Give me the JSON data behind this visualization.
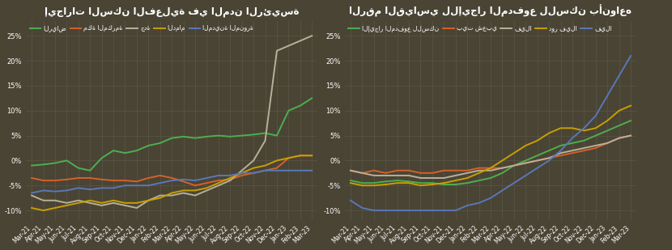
{
  "background_color": "#4a4435",
  "plot_bg_color": "#4a4435",
  "grid_color": "#5e5a48",
  "text_color": "#ffffff",
  "title1": "إيجارات السكن الفعلية في المدن الرئيسة",
  "title2": "الرقم القياسي للإيجار المدفوع للسكن بأنواعه",
  "x_labels": [
    "Mar-21",
    "Apr-21",
    "May-21",
    "Jun-21",
    "Jul-21",
    "Aug-21",
    "Sep-21",
    "Oct-21",
    "Nov-21",
    "Dec-21",
    "Jan-22",
    "Feb-22",
    "Mar-22",
    "Apr-22",
    "May-22",
    "Jun-22",
    "Jul-22",
    "Aug-22",
    "Sep-22",
    "Oct-22",
    "Nov-22",
    "Dec-22",
    "Jan-23",
    "Feb-23",
    "Mar-23"
  ],
  "chart1_legend": [
    "الرياض",
    "مكة المكرمة",
    "جدة",
    "الدمام",
    "المدينة المنورة"
  ],
  "chart1_colors": [
    "#4caf50",
    "#d4622a",
    "#b8b09a",
    "#c8a000",
    "#5878b8"
  ],
  "chart2_legend": [
    "الإيجار المدفوع للسكن",
    "بيت شعبي",
    "فيلا",
    "دور فيلا",
    "فيلا"
  ],
  "chart2_colors": [
    "#4caf50",
    "#d4622a",
    "#b8b09a",
    "#c8a000",
    "#5878b8"
  ],
  "chart1_riyadh": [
    -1.0,
    -0.8,
    -0.5,
    0.0,
    -1.5,
    -2.0,
    0.5,
    2.0,
    1.5,
    2.0,
    3.0,
    3.5,
    4.5,
    4.8,
    4.5,
    4.8,
    5.0,
    4.8,
    5.0,
    5.2,
    5.5,
    5.0,
    10.0,
    11.0,
    12.5
  ],
  "chart1_makkah": [
    -3.5,
    -4.0,
    -4.0,
    -3.8,
    -3.5,
    -3.5,
    -3.8,
    -4.0,
    -4.0,
    -4.2,
    -3.5,
    -3.0,
    -3.5,
    -4.2,
    -5.0,
    -4.5,
    -4.0,
    -3.8,
    -3.0,
    -2.5,
    -2.0,
    -1.5,
    0.5,
    1.0,
    1.0
  ],
  "chart1_jeddah": [
    -7.0,
    -8.0,
    -8.0,
    -8.5,
    -8.0,
    -8.5,
    -9.0,
    -8.5,
    -9.0,
    -9.5,
    -8.0,
    -7.0,
    -7.0,
    -6.5,
    -7.0,
    -6.0,
    -5.0,
    -4.0,
    -2.0,
    0.0,
    4.0,
    22.0,
    23.0,
    24.0,
    25.0
  ],
  "chart1_dammam": [
    -9.5,
    -10.0,
    -9.5,
    -9.0,
    -8.5,
    -8.0,
    -8.5,
    -8.0,
    -8.5,
    -8.5,
    -8.0,
    -7.5,
    -6.5,
    -6.0,
    -6.0,
    -5.5,
    -4.5,
    -3.5,
    -2.5,
    -1.5,
    -1.0,
    0.0,
    0.5,
    1.0,
    1.0
  ],
  "chart1_medina": [
    -6.5,
    -6.0,
    -6.2,
    -6.0,
    -5.5,
    -5.8,
    -5.5,
    -5.5,
    -5.0,
    -5.0,
    -5.0,
    -4.5,
    -4.0,
    -3.8,
    -4.0,
    -3.5,
    -3.0,
    -3.0,
    -2.5,
    -2.5,
    -2.0,
    -2.0,
    -2.0,
    -2.0,
    -2.0
  ],
  "chart2_paid_rent": [
    -4.0,
    -4.5,
    -4.5,
    -4.2,
    -4.0,
    -4.2,
    -4.5,
    -4.5,
    -4.8,
    -4.8,
    -4.5,
    -4.0,
    -3.5,
    -2.5,
    -1.0,
    0.0,
    1.0,
    2.0,
    3.0,
    3.5,
    4.0,
    5.0,
    6.0,
    7.0,
    8.0
  ],
  "chart2_sha3bi": [
    -2.0,
    -2.5,
    -2.0,
    -2.5,
    -2.0,
    -2.0,
    -2.5,
    -2.5,
    -2.0,
    -2.0,
    -2.0,
    -1.5,
    -1.5,
    -1.5,
    -1.0,
    -0.5,
    0.0,
    0.5,
    1.0,
    1.5,
    2.0,
    2.5,
    3.5,
    4.5,
    5.0
  ],
  "chart2_filla": [
    -2.0,
    -2.5,
    -3.0,
    -3.0,
    -3.0,
    -3.0,
    -3.5,
    -3.5,
    -3.5,
    -3.0,
    -2.5,
    -2.0,
    -2.0,
    -1.5,
    -1.0,
    -0.5,
    0.0,
    0.5,
    1.5,
    2.0,
    2.5,
    3.0,
    3.5,
    4.5,
    5.0
  ],
  "chart2_dour_filla": [
    -4.5,
    -5.0,
    -5.0,
    -4.8,
    -4.5,
    -4.5,
    -5.0,
    -4.8,
    -4.5,
    -4.0,
    -3.5,
    -2.5,
    -1.5,
    0.0,
    1.5,
    3.0,
    4.0,
    5.5,
    6.5,
    6.5,
    6.0,
    6.5,
    8.0,
    10.0,
    11.0
  ],
  "chart2_villa": [
    -8.0,
    -9.5,
    -10.0,
    -10.0,
    -10.0,
    -10.0,
    -10.0,
    -10.0,
    -10.0,
    -10.0,
    -9.0,
    -8.5,
    -7.5,
    -6.0,
    -4.5,
    -3.0,
    -1.5,
    0.0,
    2.0,
    4.5,
    6.5,
    9.0,
    13.0,
    17.0,
    21.0
  ],
  "ylim": [
    -12,
    28
  ],
  "yticks": [
    -10,
    -5,
    0,
    5,
    10,
    15,
    20,
    25
  ]
}
